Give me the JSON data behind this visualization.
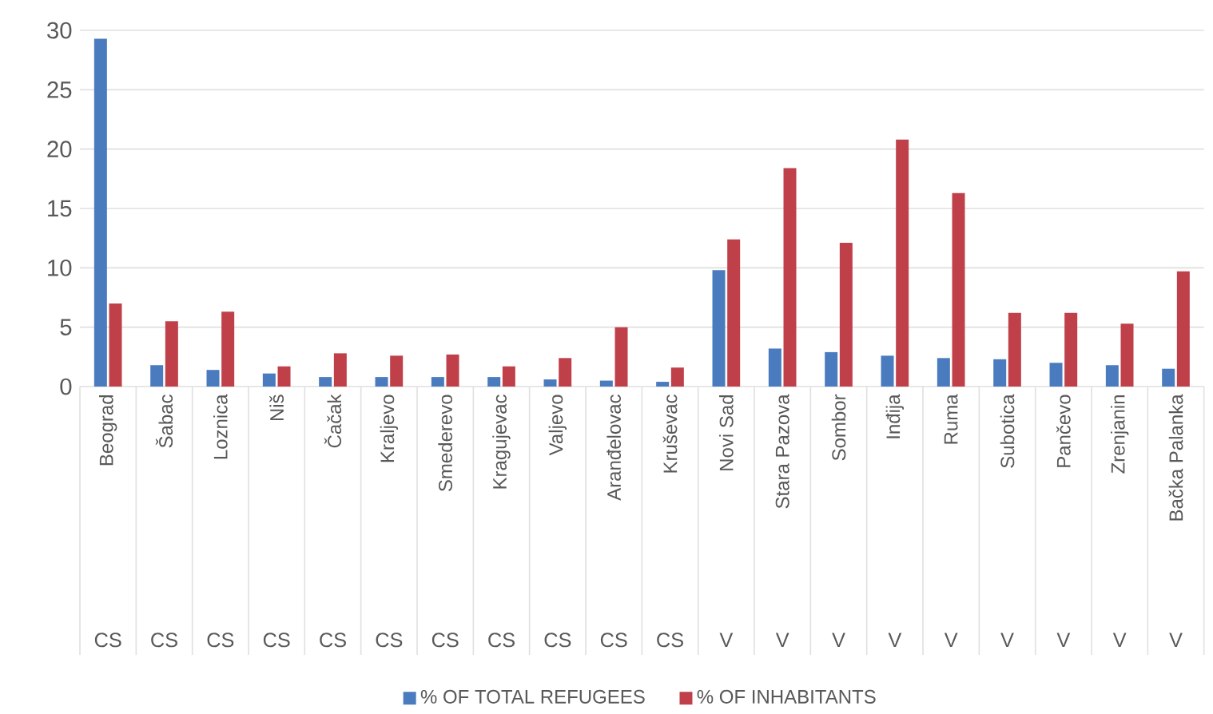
{
  "chart_data": {
    "type": "bar",
    "categories": [
      "Beograd",
      "Šabac",
      "Loznica",
      "Niš",
      "Čačak",
      "Kraljevo",
      "Smederevo",
      "Kragujevac",
      "Valjevo",
      "Aranđelovac",
      "Kruševac",
      "Novi Sad",
      "Stara Pazova",
      "Sombor",
      "Inđija",
      "Ruma",
      "Subotica",
      "Pančevo",
      "Zrenjanin",
      "Bačka Palanka"
    ],
    "series": [
      {
        "name": "% OF TOTAL REFUGEES",
        "color": "#4a7bbf",
        "values": [
          29.3,
          1.8,
          1.4,
          1.1,
          0.8,
          0.8,
          0.8,
          0.8,
          0.6,
          0.5,
          0.4,
          9.8,
          3.2,
          2.9,
          2.6,
          2.4,
          2.3,
          2.0,
          1.8,
          1.5
        ]
      },
      {
        "name": "% OF INHABITANTS",
        "color": "#c0404a",
        "values": [
          7.0,
          5.5,
          6.3,
          1.7,
          2.8,
          2.6,
          2.7,
          1.7,
          2.4,
          5.0,
          1.6,
          12.4,
          18.4,
          12.1,
          20.8,
          16.3,
          6.2,
          6.2,
          5.3,
          9.7
        ]
      }
    ],
    "annotations": [
      "CS",
      "CS",
      "CS",
      "CS",
      "CS",
      "CS",
      "CS",
      "CS",
      "CS",
      "CS",
      "CS",
      "V",
      "V",
      "V",
      "V",
      "V",
      "V",
      "V",
      "V",
      "V"
    ],
    "ylim": [
      0,
      30
    ],
    "yticks": [
      0,
      5,
      10,
      15,
      20,
      25,
      30
    ],
    "grid": "y",
    "legend": "bottom"
  }
}
